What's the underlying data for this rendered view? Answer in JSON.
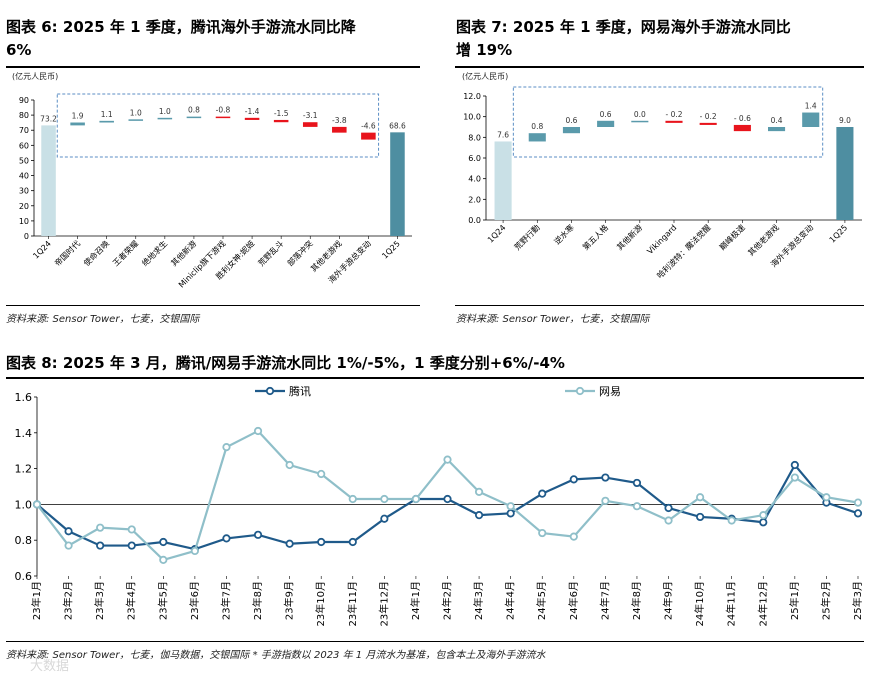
{
  "panels": {
    "p6": {
      "title": "图表 6: 2025 年 1 季度，腾讯海外手游流水同比降 6%",
      "title_line1": "图表 6: 2025 年 1 季度，腾讯海外手游流水同比降",
      "title_line2": "6%",
      "unit": "(亿元人民币)",
      "source": "资料来源: Sensor Tower，七麦，交银国际"
    },
    "p7": {
      "title": "图表 7: 2025 年 1 季度，网易海外手游流水同比增 19%",
      "title_line1": "图表 7: 2025 年 1 季度，网易海外手游流水同比",
      "title_line2": "增 19%",
      "unit": "(亿元人民币)",
      "source": "资料来源: Sensor Tower，七麦，交银国际"
    },
    "p8": {
      "title": "图表 8: 2025 年 3 月，腾讯/网易手游流水同比 1%/-5%，1 季度分别+6%/-4%",
      "source": "资料来源: Sensor Tower，七麦，伽马数据，交银国际  * 手游指数以 2023 年 1 月流水为基准，包含本土及海外手游流水"
    }
  },
  "watermark": "大数据",
  "colors": {
    "start_bar": "#c9e0e6",
    "end_bar": "#4e8ea1",
    "increase": "#5a9aab",
    "decrease": "#e8141c",
    "tencent": "#1f5a8a",
    "netease": "#8fbfc9",
    "box": "#5b8ec4"
  },
  "chart_data": [
    {
      "id": "p6",
      "type": "bar",
      "subtype": "waterfall",
      "ylim": [
        0,
        90
      ],
      "yticks": [
        0,
        10,
        20,
        30,
        40,
        50,
        60,
        70,
        80,
        90
      ],
      "categories": [
        "1Q24",
        "帝国时代",
        "使命召唤",
        "王者荣耀",
        "绝地求生",
        "其他新游",
        "Miniclip旗下游戏",
        "胜利女神:妮姬",
        "荒野乱斗",
        "部落冲突",
        "其他老游戏",
        "海外手游总变动",
        "1Q25"
      ],
      "start": {
        "label": "73.2",
        "value": 73.2
      },
      "end": {
        "label": "68.6",
        "value": 68.6
      },
      "changes": [
        {
          "label": "1.9",
          "value": 1.9
        },
        {
          "label": "1.1",
          "value": 1.1
        },
        {
          "label": "1.0",
          "value": 1.0
        },
        {
          "label": "1.0",
          "value": 1.0
        },
        {
          "label": "0.8",
          "value": 0.8
        },
        {
          "label": "-0.8",
          "value": -0.8
        },
        {
          "label": "-1.4",
          "value": -1.4
        },
        {
          "label": "-1.5",
          "value": -1.5
        },
        {
          "label": "-3.1",
          "value": -3.1
        },
        {
          "label": "-3.8",
          "value": -3.8
        },
        {
          "label": "-4.6",
          "value": -4.6
        }
      ]
    },
    {
      "id": "p7",
      "type": "bar",
      "subtype": "waterfall",
      "ylim": [
        0,
        12
      ],
      "yticks": [
        0.0,
        2.0,
        4.0,
        6.0,
        8.0,
        10.0,
        12.0
      ],
      "categories": [
        "1Q24",
        "荒野行動",
        "逆水寒",
        "第五人格",
        "其他新游",
        "Vikingard",
        "哈利波特：魔法觉醒",
        "巅峰极速",
        "其他老游戏",
        "海外手游总变动",
        "1Q25"
      ],
      "start": {
        "label": "7.6",
        "value": 7.6
      },
      "end": {
        "label": "9.0",
        "value": 9.0
      },
      "changes": [
        {
          "label": "0.8",
          "value": 0.8
        },
        {
          "label": "0.6",
          "value": 0.6
        },
        {
          "label": "0.6",
          "value": 0.6
        },
        {
          "label": "0.0",
          "value": 0.0
        },
        {
          "label": "- 0.2",
          "value": -0.2
        },
        {
          "label": "- 0.2",
          "value": -0.2
        },
        {
          "label": "- 0.6",
          "value": -0.6
        },
        {
          "label": "0.4",
          "value": 0.4
        },
        {
          "label": "1.4",
          "value": 1.4
        }
      ]
    },
    {
      "id": "p8",
      "type": "line",
      "ylim": [
        0.6,
        1.6
      ],
      "yticks": [
        "0.6",
        "0.8",
        "1.0",
        "1.2",
        "1.4",
        "1.6"
      ],
      "x": [
        "23年1月",
        "23年2月",
        "23年3月",
        "23年4月",
        "23年5月",
        "23年6月",
        "23年7月",
        "23年8月",
        "23年9月",
        "23年10月",
        "23年11月",
        "23年12月",
        "24年1月",
        "24年2月",
        "24年3月",
        "24年4月",
        "24年5月",
        "24年6月",
        "24年7月",
        "24年8月",
        "24年9月",
        "24年10月",
        "24年11月",
        "24年12月",
        "25年1月",
        "25年2月",
        "25年3月"
      ],
      "legend_position": "top",
      "series": [
        {
          "name": "腾讯",
          "values": [
            1.0,
            0.85,
            0.77,
            0.77,
            0.79,
            0.75,
            0.81,
            0.83,
            0.78,
            0.79,
            0.79,
            0.92,
            1.03,
            1.03,
            0.94,
            0.95,
            1.06,
            1.14,
            1.15,
            1.12,
            0.98,
            0.93,
            0.92,
            0.9,
            1.22,
            1.01,
            0.95
          ]
        },
        {
          "name": "网易",
          "values": [
            1.0,
            0.77,
            0.87,
            0.86,
            0.69,
            0.74,
            1.32,
            1.41,
            1.22,
            1.17,
            1.03,
            1.03,
            1.03,
            1.25,
            1.07,
            0.99,
            0.84,
            0.82,
            1.02,
            0.99,
            0.91,
            1.04,
            0.91,
            0.94,
            1.15,
            1.04,
            1.01
          ]
        }
      ]
    }
  ]
}
